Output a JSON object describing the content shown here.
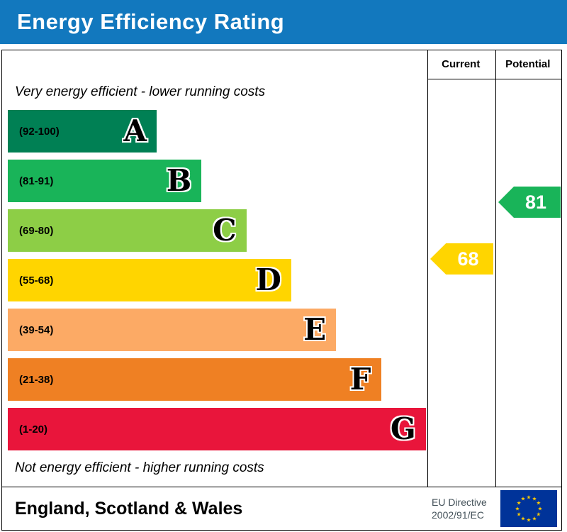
{
  "title_bar": {
    "label": "Energy Efficiency Rating",
    "background": "#1278be",
    "text_color": "#ffffff"
  },
  "columns": {
    "current_label": "Current",
    "potential_label": "Potential"
  },
  "captions": {
    "top": "Very energy efficient - lower running costs",
    "bottom": "Not energy efficient - higher running costs"
  },
  "chart_data": {
    "type": "bar",
    "title": "Energy Efficiency Rating",
    "categories": [
      "A",
      "B",
      "C",
      "D",
      "E",
      "F",
      "G"
    ],
    "bands": [
      {
        "letter": "A",
        "range": "(92-100)",
        "color": "#008054"
      },
      {
        "letter": "B",
        "range": "(81-91)",
        "color": "#19b459"
      },
      {
        "letter": "C",
        "range": "(69-80)",
        "color": "#8dce46"
      },
      {
        "letter": "D",
        "range": "(55-68)",
        "color": "#ffd500"
      },
      {
        "letter": "E",
        "range": "(39-54)",
        "color": "#fcaa65"
      },
      {
        "letter": "F",
        "range": "(21-38)",
        "color": "#ef8023"
      },
      {
        "letter": "G",
        "range": "(1-20)",
        "color": "#e9153b"
      }
    ],
    "ratings": {
      "current": {
        "value": 68,
        "band": "D",
        "color": "#ffd500"
      },
      "potential": {
        "value": 81,
        "band": "B",
        "color": "#19b459"
      }
    }
  },
  "footer": {
    "region_label": "England, Scotland & Wales",
    "directive_line1": "EU Directive",
    "directive_line2": "2002/91/EC",
    "eu_flag": {
      "background": "#003399",
      "star_color": "#ffcc00"
    }
  }
}
